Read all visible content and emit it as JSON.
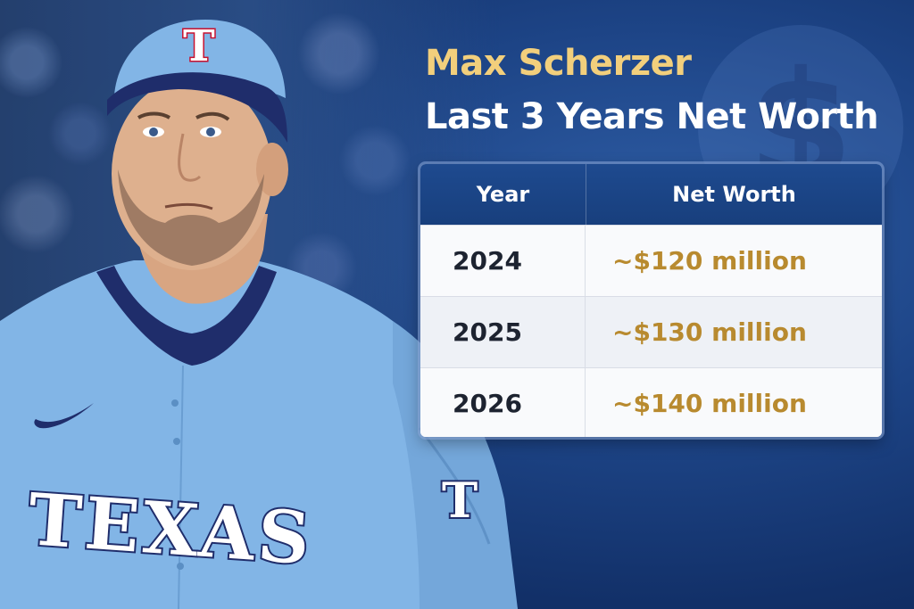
{
  "title": {
    "name": "Max Scherzer",
    "subtitle": "Last 3 Years Net Worth"
  },
  "table": {
    "headers": [
      "Year",
      "Net Worth"
    ],
    "rows": [
      {
        "year": "2024",
        "net_worth": "~$120 million"
      },
      {
        "year": "2025",
        "net_worth": "~$130 million"
      },
      {
        "year": "2026",
        "net_worth": "~$140 million"
      }
    ]
  },
  "photo": {
    "jersey_text": "TEXAS",
    "cap_letter": "T",
    "sleeve_letter": "T"
  },
  "icons": {
    "watermark": "dollar-sign-icon",
    "jersey_logo": "swoosh-logo-icon"
  },
  "colors": {
    "title_gold": "#f2cf7c",
    "value_gold": "#b88a2f",
    "header_blue": "#1e4a8f",
    "background_blue": "#1d4486",
    "jersey_blue": "#7fb2e4"
  }
}
